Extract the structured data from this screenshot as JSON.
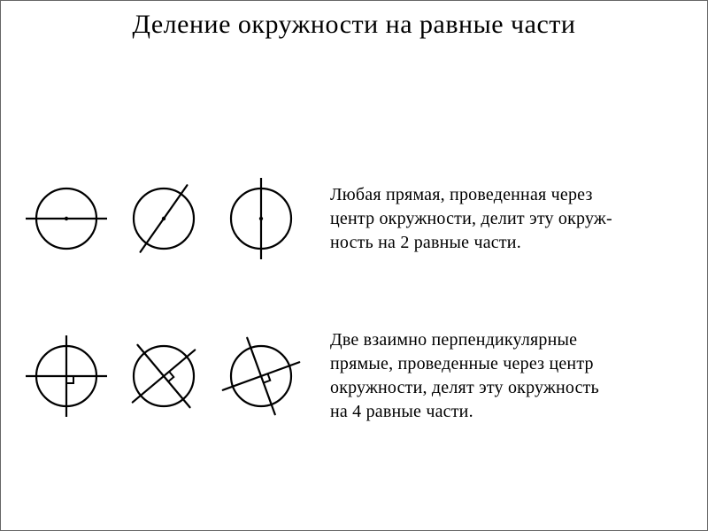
{
  "title": "Деление окружности на равные части",
  "stroke_color": "#000000",
  "stroke_width": 2.2,
  "circle_radius": 34,
  "center_dot_radius": 2.2,
  "right_angle_size": 8,
  "row1": {
    "desc_lines": [
      "Любая прямая, проведенная через",
      "центр окружности, делит эту окруж-",
      "ность на 2 равные части."
    ],
    "diagrams": [
      {
        "type": "one-line",
        "angle_deg": 0
      },
      {
        "type": "one-line",
        "angle_deg": 55
      },
      {
        "type": "one-line",
        "angle_deg": 90
      }
    ]
  },
  "row2": {
    "desc_lines": [
      "Две взаимно перпендикулярные",
      "прямые, проведенные через центр",
      "окружности, делят эту  окружность",
      "на 4 равные части."
    ],
    "diagrams": [
      {
        "type": "two-perp",
        "angle_deg": 0
      },
      {
        "type": "two-perp",
        "angle_deg": 40
      },
      {
        "type": "two-perp",
        "angle_deg": 20
      }
    ]
  }
}
